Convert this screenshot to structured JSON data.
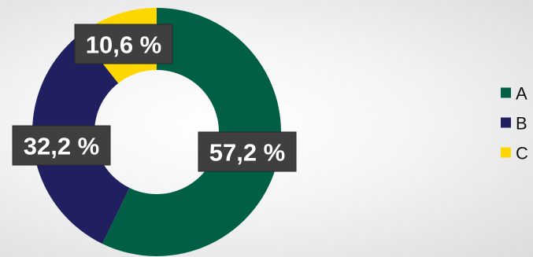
{
  "chart_data": {
    "type": "pie",
    "variant": "doughnut",
    "series": [
      {
        "name": "",
        "values": [
          57.2,
          32.2,
          10.6
        ],
        "labels": [
          "57,2 %",
          "32,2 %",
          "10,6 %"
        ]
      }
    ],
    "categories": [
      "A",
      "B",
      "C"
    ],
    "colors": [
      "#005f44",
      "#202060",
      "#ffd700"
    ],
    "legend": {
      "position": "right",
      "entries": [
        "A",
        "B",
        "C"
      ]
    },
    "start_angle": "12 o'clock",
    "direction": "clockwise"
  }
}
